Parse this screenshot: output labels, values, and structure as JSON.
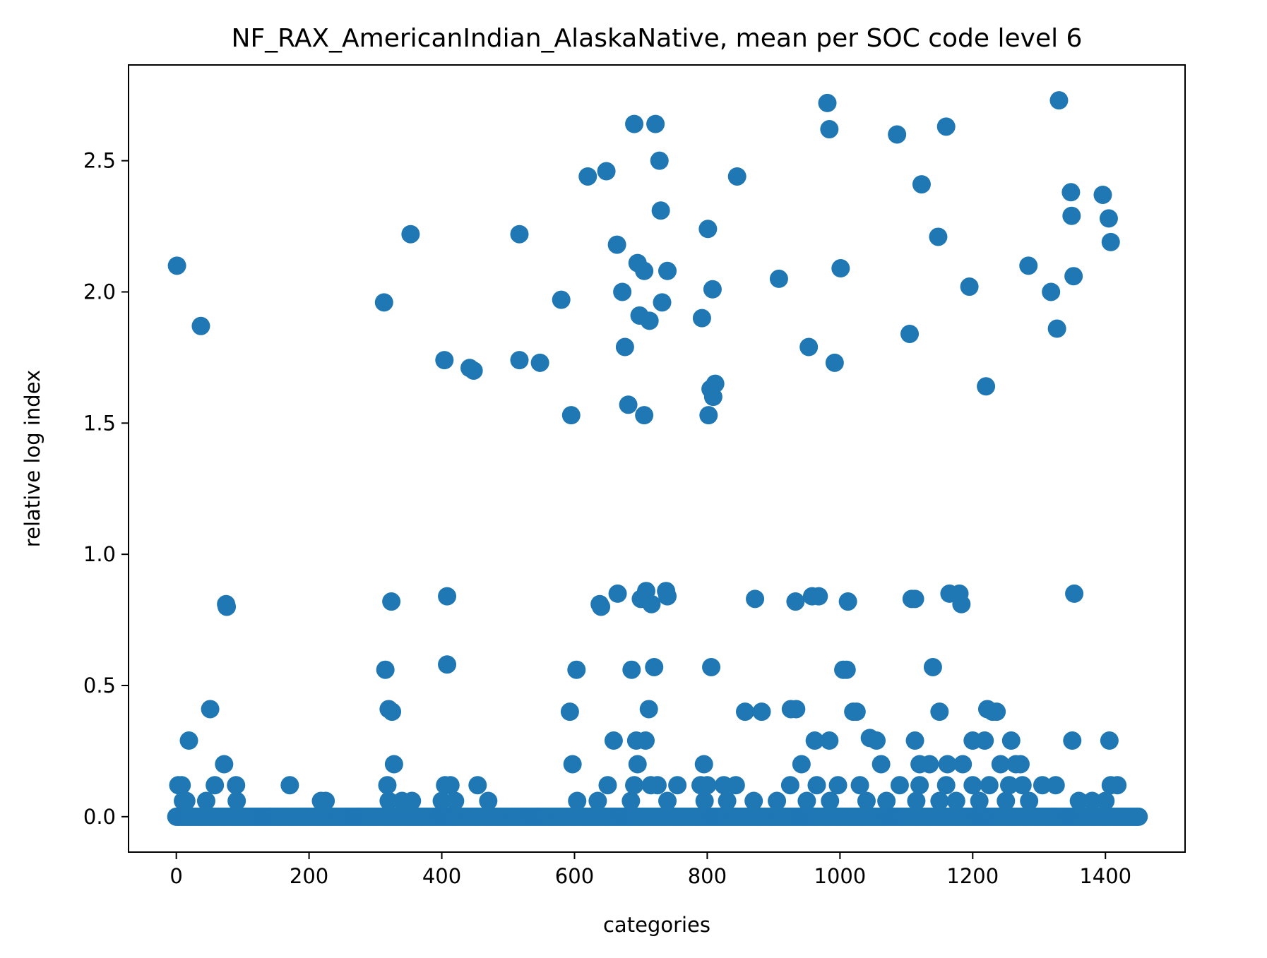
{
  "chart_data": {
    "type": "scatter",
    "title": "NF_RAX_AmericanIndian_AlaskaNative, mean per SOC code level 6",
    "xlabel": "categories",
    "ylabel": "relative log index",
    "xlim": [
      -72,
      1520
    ],
    "ylim": [
      -0.135,
      2.865
    ],
    "xticks": [
      0,
      200,
      400,
      600,
      800,
      1000,
      1200,
      1400
    ],
    "xtick_labels": [
      "0",
      "200",
      "400",
      "600",
      "800",
      "1000",
      "1200",
      "1400"
    ],
    "yticks": [
      0.0,
      0.5,
      1.0,
      1.5,
      2.0,
      2.5
    ],
    "ytick_labels": [
      "0.0",
      "0.5",
      "1.0",
      "1.5",
      "2.0",
      "2.5"
    ],
    "grid": false,
    "legend": "none",
    "color": "#1f77b4",
    "baseline": {
      "y": 0.0,
      "x_start": 0,
      "x_end": 1450,
      "step": 2
    },
    "points": [
      [
        1,
        2.1
      ],
      [
        37,
        1.87
      ],
      [
        75,
        0.81
      ],
      [
        76,
        0.8
      ],
      [
        51,
        0.41
      ],
      [
        19,
        0.29
      ],
      [
        72,
        0.2
      ],
      [
        3,
        0.12
      ],
      [
        8,
        0.12
      ],
      [
        58,
        0.12
      ],
      [
        90,
        0.12
      ],
      [
        171,
        0.12
      ],
      [
        10,
        0.06
      ],
      [
        15,
        0.06
      ],
      [
        45,
        0.06
      ],
      [
        91,
        0.06
      ],
      [
        218,
        0.06
      ],
      [
        225,
        0.06
      ],
      [
        313,
        1.96
      ],
      [
        353,
        2.22
      ],
      [
        324,
        0.82
      ],
      [
        315,
        0.56
      ],
      [
        320,
        0.41
      ],
      [
        325,
        0.4
      ],
      [
        328,
        0.2
      ],
      [
        318,
        0.12
      ],
      [
        320,
        0.06
      ],
      [
        340,
        0.06
      ],
      [
        355,
        0.06
      ],
      [
        404,
        1.74
      ],
      [
        442,
        1.71
      ],
      [
        448,
        1.7
      ],
      [
        408,
        0.84
      ],
      [
        408,
        0.58
      ],
      [
        405,
        0.12
      ],
      [
        413,
        0.12
      ],
      [
        454,
        0.12
      ],
      [
        400,
        0.06
      ],
      [
        420,
        0.06
      ],
      [
        470,
        0.06
      ],
      [
        517,
        1.74
      ],
      [
        517,
        2.22
      ],
      [
        548,
        1.73
      ],
      [
        580,
        1.97
      ],
      [
        595,
        1.53
      ],
      [
        603,
        0.56
      ],
      [
        593,
        0.4
      ],
      [
        597,
        0.2
      ],
      [
        604,
        0.06
      ],
      [
        635,
        0.06
      ],
      [
        620,
        2.44
      ],
      [
        648,
        2.46
      ],
      [
        664,
        2.18
      ],
      [
        672,
        2.0
      ],
      [
        676,
        1.79
      ],
      [
        681,
        1.57
      ],
      [
        690,
        2.64
      ],
      [
        722,
        2.64
      ],
      [
        695,
        2.11
      ],
      [
        705,
        2.08
      ],
      [
        698,
        1.91
      ],
      [
        713,
        1.89
      ],
      [
        728,
        2.5
      ],
      [
        730,
        2.31
      ],
      [
        732,
        1.96
      ],
      [
        740,
        2.08
      ],
      [
        705,
        1.53
      ],
      [
        638,
        0.81
      ],
      [
        640,
        0.8
      ],
      [
        665,
        0.85
      ],
      [
        700,
        0.83
      ],
      [
        708,
        0.86
      ],
      [
        716,
        0.81
      ],
      [
        738,
        0.86
      ],
      [
        740,
        0.84
      ],
      [
        686,
        0.56
      ],
      [
        720,
        0.57
      ],
      [
        659,
        0.29
      ],
      [
        693,
        0.29
      ],
      [
        707,
        0.29
      ],
      [
        712,
        0.41
      ],
      [
        695,
        0.2
      ],
      [
        650,
        0.12
      ],
      [
        690,
        0.12
      ],
      [
        715,
        0.12
      ],
      [
        725,
        0.12
      ],
      [
        755,
        0.12
      ],
      [
        685,
        0.06
      ],
      [
        740,
        0.06
      ],
      [
        801,
        2.24
      ],
      [
        808,
        2.01
      ],
      [
        792,
        1.9
      ],
      [
        805,
        1.63
      ],
      [
        812,
        1.65
      ],
      [
        809,
        1.6
      ],
      [
        802,
        1.53
      ],
      [
        845,
        2.44
      ],
      [
        806,
        0.57
      ],
      [
        872,
        0.83
      ],
      [
        795,
        0.2
      ],
      [
        790,
        0.12
      ],
      [
        800,
        0.12
      ],
      [
        825,
        0.12
      ],
      [
        843,
        0.12
      ],
      [
        796,
        0.06
      ],
      [
        830,
        0.06
      ],
      [
        870,
        0.06
      ],
      [
        857,
        0.4
      ],
      [
        882,
        0.4
      ],
      [
        908,
        2.05
      ],
      [
        953,
        1.79
      ],
      [
        981,
        2.72
      ],
      [
        984,
        2.62
      ],
      [
        992,
        1.73
      ],
      [
        1001,
        2.09
      ],
      [
        933,
        0.82
      ],
      [
        958,
        0.84
      ],
      [
        968,
        0.84
      ],
      [
        1012,
        0.82
      ],
      [
        926,
        0.41
      ],
      [
        934,
        0.41
      ],
      [
        942,
        0.2
      ],
      [
        962,
        0.29
      ],
      [
        984,
        0.29
      ],
      [
        925,
        0.12
      ],
      [
        965,
        0.12
      ],
      [
        997,
        0.12
      ],
      [
        905,
        0.06
      ],
      [
        950,
        0.06
      ],
      [
        985,
        0.06
      ],
      [
        1005,
        0.56
      ],
      [
        1010,
        0.56
      ],
      [
        1020,
        0.4
      ],
      [
        1025,
        0.4
      ],
      [
        1045,
        0.3
      ],
      [
        1055,
        0.29
      ],
      [
        1062,
        0.2
      ],
      [
        1030,
        0.12
      ],
      [
        1090,
        0.12
      ],
      [
        1040,
        0.06
      ],
      [
        1070,
        0.06
      ],
      [
        1086,
        2.6
      ],
      [
        1105,
        1.84
      ],
      [
        1123,
        2.41
      ],
      [
        1148,
        2.21
      ],
      [
        1160,
        2.63
      ],
      [
        1195,
        2.02
      ],
      [
        1220,
        1.64
      ],
      [
        1108,
        0.83
      ],
      [
        1113,
        0.83
      ],
      [
        1165,
        0.85
      ],
      [
        1180,
        0.85
      ],
      [
        1183,
        0.81
      ],
      [
        1140,
        0.57
      ],
      [
        1150,
        0.4
      ],
      [
        1113,
        0.29
      ],
      [
        1120,
        0.2
      ],
      [
        1135,
        0.2
      ],
      [
        1162,
        0.2
      ],
      [
        1185,
        0.2
      ],
      [
        1120,
        0.12
      ],
      [
        1160,
        0.12
      ],
      [
        1115,
        0.06
      ],
      [
        1150,
        0.06
      ],
      [
        1175,
        0.06
      ],
      [
        1200,
        0.29
      ],
      [
        1218,
        0.29
      ],
      [
        1222,
        0.41
      ],
      [
        1230,
        0.4
      ],
      [
        1236,
        0.4
      ],
      [
        1242,
        0.2
      ],
      [
        1258,
        0.29
      ],
      [
        1265,
        0.2
      ],
      [
        1272,
        0.2
      ],
      [
        1200,
        0.12
      ],
      [
        1225,
        0.12
      ],
      [
        1255,
        0.12
      ],
      [
        1275,
        0.12
      ],
      [
        1305,
        0.12
      ],
      [
        1325,
        0.12
      ],
      [
        1210,
        0.06
      ],
      [
        1250,
        0.06
      ],
      [
        1285,
        0.06
      ],
      [
        1284,
        2.1
      ],
      [
        1318,
        2.0
      ],
      [
        1327,
        1.86
      ],
      [
        1330,
        2.73
      ],
      [
        1348,
        2.38
      ],
      [
        1349,
        2.29
      ],
      [
        1352,
        2.06
      ],
      [
        1396,
        2.37
      ],
      [
        1405,
        2.28
      ],
      [
        1408,
        2.19
      ],
      [
        1353,
        0.85
      ],
      [
        1350,
        0.29
      ],
      [
        1406,
        0.29
      ],
      [
        1408,
        0.12
      ],
      [
        1418,
        0.12
      ],
      [
        1360,
        0.06
      ],
      [
        1380,
        0.06
      ],
      [
        1400,
        0.06
      ]
    ]
  }
}
